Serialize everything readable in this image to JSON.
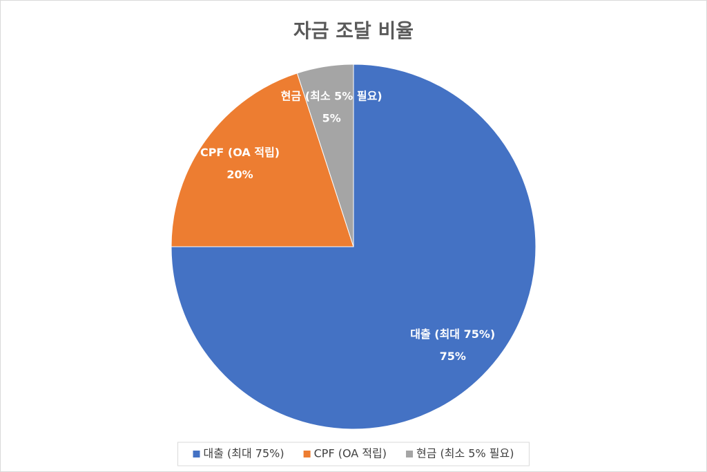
{
  "chart_data": {
    "type": "pie",
    "title": "자금 조달 비율",
    "categories": [
      "대출 (최대 75%)",
      "CPF (OA 적립)",
      "현금 (최소 5% 필요)"
    ],
    "values": [
      75,
      20,
      5
    ],
    "value_labels": [
      "75%",
      "20%",
      "5%"
    ],
    "colors": [
      "#4472c4",
      "#ed7d31",
      "#a5a5a5"
    ],
    "legend": "bottom"
  }
}
